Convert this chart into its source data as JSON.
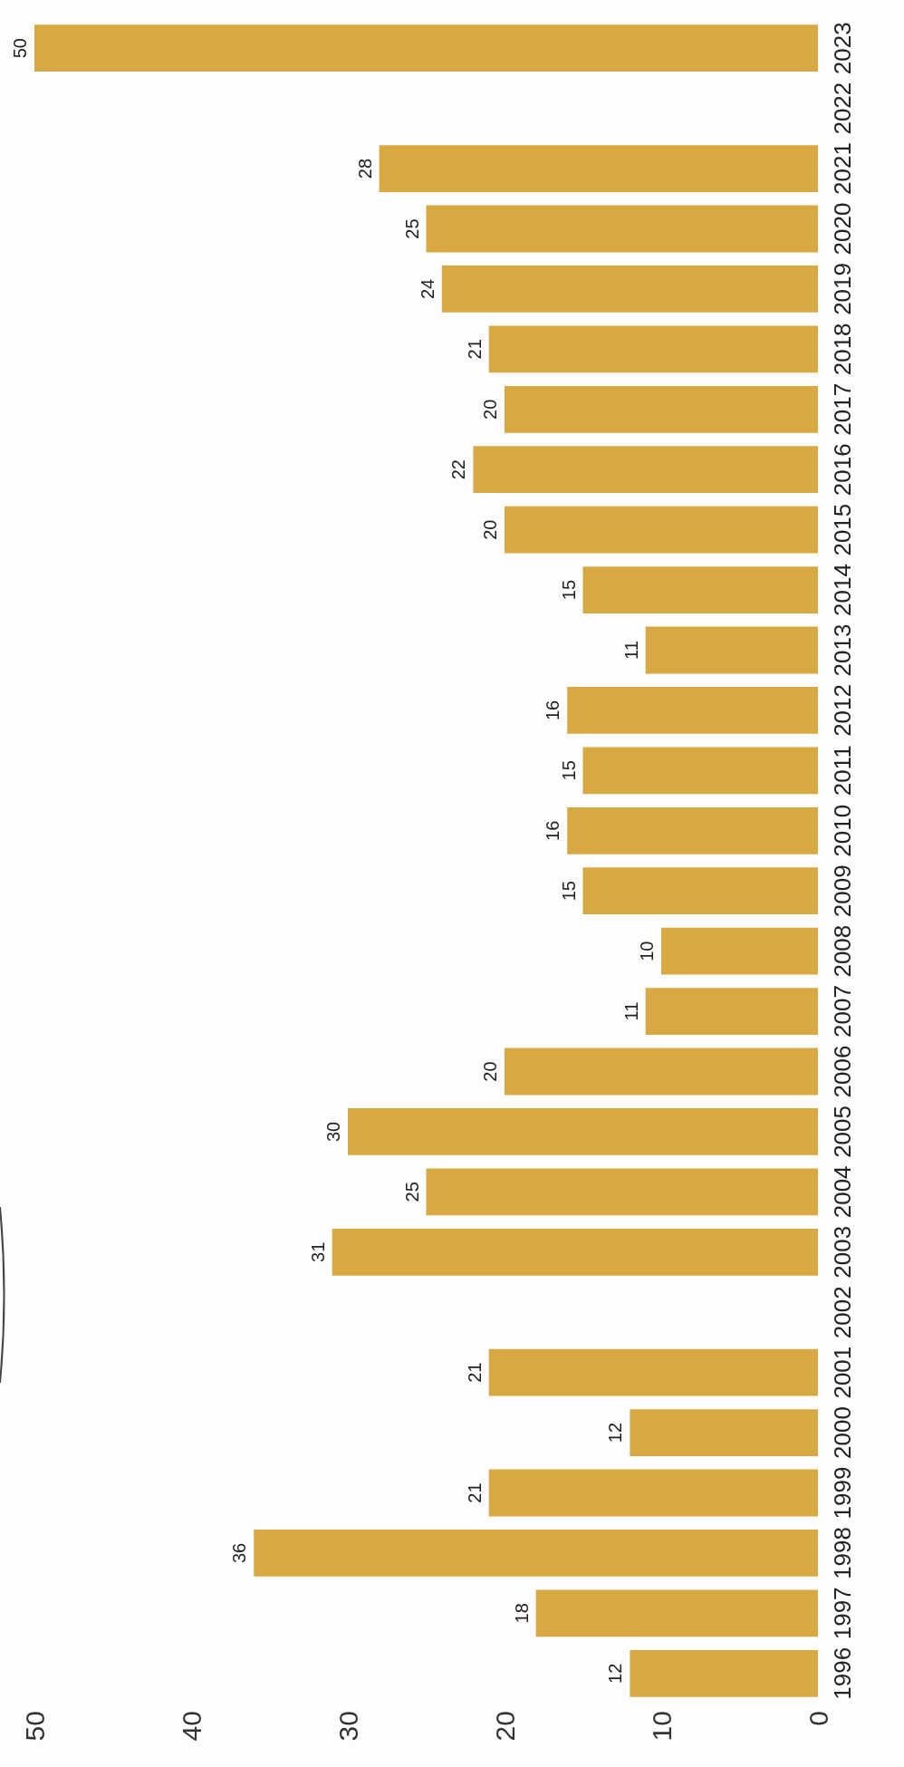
{
  "chart_data": {
    "type": "bar",
    "orientation": "horizontal",
    "categories": [
      "2023",
      "2022",
      "2021",
      "2020",
      "2019",
      "2018",
      "2017",
      "2016",
      "2015",
      "2014",
      "2013",
      "2012",
      "2011",
      "2010",
      "2009",
      "2008",
      "2007",
      "2006",
      "2005",
      "2004",
      "2003",
      "2002",
      "2001",
      "2000",
      "1999",
      "1998",
      "1997",
      "1996"
    ],
    "values": [
      50,
      null,
      28,
      25,
      24,
      21,
      20,
      22,
      20,
      15,
      11,
      16,
      15,
      16,
      15,
      10,
      11,
      20,
      30,
      25,
      31,
      null,
      21,
      12,
      21,
      36,
      18,
      12
    ],
    "color": "#d8a942",
    "xlim": [
      50,
      0
    ],
    "xticks": [
      0,
      10,
      20,
      30,
      40,
      50
    ],
    "data_labels": true,
    "grid": false
  }
}
